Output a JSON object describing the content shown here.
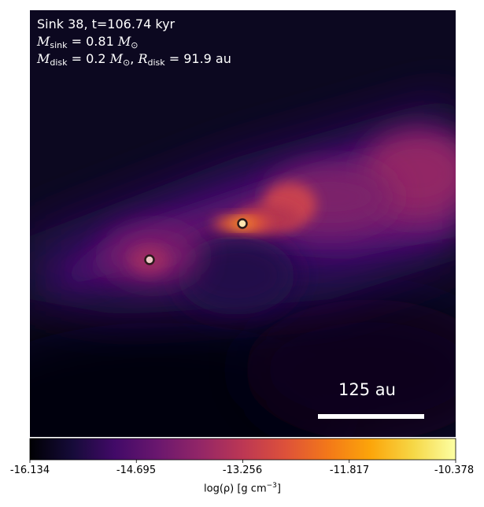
{
  "panel": {
    "title": "Sink 38, t=106.74 kyr",
    "m_sink_value": "= 0.81",
    "m_disk_value": "= 0.2",
    "r_disk_value": "= 91.9 au",
    "msun_symbol": "M",
    "odot": "⊙"
  },
  "scale_bar": {
    "label": "125 au"
  },
  "colorbar": {
    "label": "log(ρ) [g cm",
    "label_exp": "−3",
    "label_end": "]",
    "colormap": "inferno",
    "ticks": [
      "-16.134",
      "-14.695",
      "-13.256",
      "-11.817",
      "-10.378"
    ]
  },
  "sinks": [
    {
      "name": "sink-primary",
      "fill": "#ffe6b0"
    },
    {
      "name": "sink-secondary",
      "fill": "#f0c8c8"
    }
  ]
}
